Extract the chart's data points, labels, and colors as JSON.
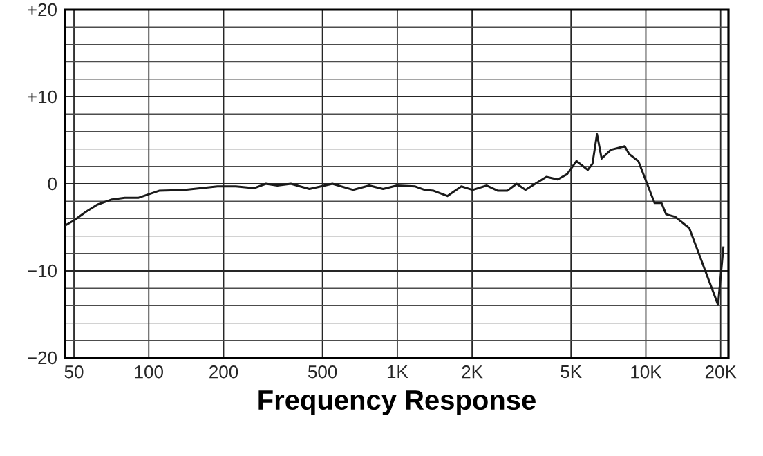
{
  "chart_data": {
    "type": "line",
    "xlabel": "Frequency Response",
    "log": "x",
    "grid": true,
    "xlim": [
      46,
      21500
    ],
    "ylim": [
      -20,
      20
    ],
    "xticks": [
      50,
      100,
      200,
      500,
      {
        "value": 1000,
        "label": "1K"
      },
      {
        "value": 2000,
        "label": "2K"
      },
      {
        "value": 5000,
        "label": "5K"
      },
      {
        "value": 10000,
        "label": "10K"
      },
      {
        "value": 20000,
        "label": "20K"
      }
    ],
    "yticks": [
      {
        "value": 20,
        "label": "+20"
      },
      {
        "value": 10,
        "label": "+10"
      },
      0,
      {
        "value": -10,
        "label": "−10"
      },
      {
        "value": -20,
        "label": "−20"
      }
    ],
    "series": [
      {
        "color": "#1a1a1a",
        "x": [
          46,
          50,
          56,
          62,
          71,
          80,
          91,
          100,
          110,
          140,
          189,
          224,
          265,
          296,
          329,
          373,
          443,
          548,
          664,
          771,
          877,
          996,
          1180,
          1290,
          1400,
          1590,
          1810,
          2010,
          2290,
          2540,
          2770,
          3020,
          3280,
          3980,
          4420,
          4820,
          5260,
          5840,
          6100,
          6360,
          6640,
          7230,
          8220,
          8580,
          9330,
          10840,
          11560,
          12070,
          13140,
          14960,
          19520,
          20530
        ],
        "values": [
          -4.8,
          -4.2,
          -3.2,
          -2.4,
          -1.8,
          -1.6,
          -1.6,
          -1.2,
          -0.8,
          -0.7,
          -0.3,
          -0.3,
          -0.5,
          0,
          -0.2,
          0,
          -0.6,
          0,
          -0.7,
          -0.2,
          -0.6,
          -0.2,
          -0.3,
          -0.7,
          -0.8,
          -1.4,
          -0.3,
          -0.7,
          -0.2,
          -0.8,
          -0.8,
          0,
          -0.7,
          0.8,
          0.5,
          1.1,
          2.6,
          1.6,
          2.3,
          5.7,
          2.9,
          3.9,
          4.3,
          3.4,
          2.6,
          -2.2,
          -2.2,
          -3.5,
          -3.8,
          -5.1,
          -13.9,
          -7.2
        ]
      }
    ]
  }
}
